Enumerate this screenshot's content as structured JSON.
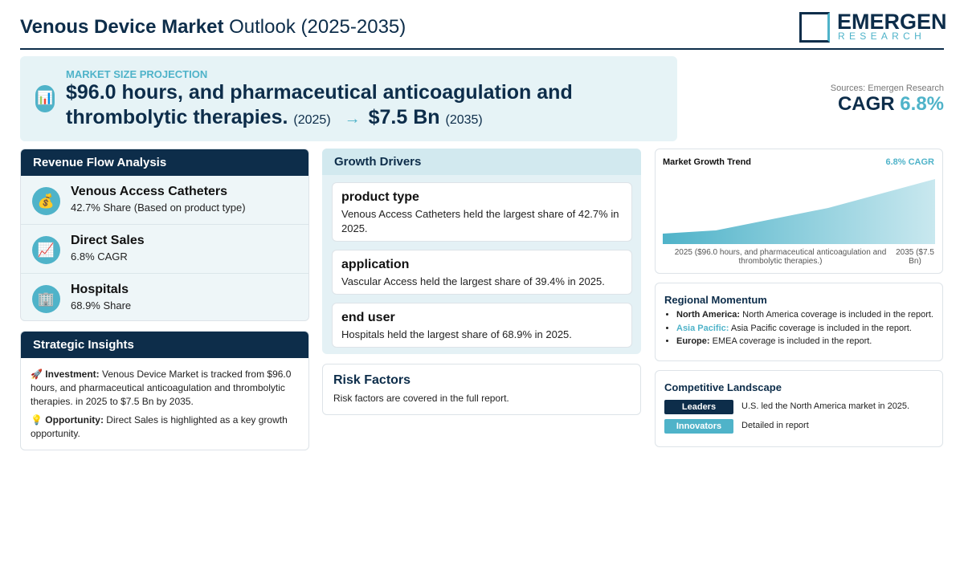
{
  "header": {
    "title_bold": "Venous Device Market",
    "title_rest": "Outlook (2025-2035)",
    "logo": {
      "name": "EMERGEN",
      "sub": "RESEARCH"
    }
  },
  "projection": {
    "label": "MARKET SIZE PROJECTION",
    "icon": "📊",
    "start_value": "$96.0 hours, and pharmaceutical anticoagulation and thrombolytic therapies.",
    "start_year": "(2025)",
    "arrow": "→",
    "end_value": "$7.5 Bn",
    "end_year": "(2035)"
  },
  "sources": "Sources: Emergen Research",
  "cagr": {
    "label": "CAGR",
    "value": "6.8%"
  },
  "revenue_flow": {
    "title": "Revenue Flow Analysis",
    "items": [
      {
        "icon": "💰",
        "name": "Venous Access Catheters",
        "detail": "42.7% Share (Based on product type)"
      },
      {
        "icon": "📈",
        "name": "Direct Sales",
        "detail": "6.8% CAGR"
      },
      {
        "icon": "🏢",
        "name": "Hospitals",
        "detail": "68.9% Share"
      }
    ]
  },
  "strategic_insights": {
    "title": "Strategic Insights",
    "items": [
      {
        "icon": "🚀",
        "label": "Investment:",
        "text": "Venous Device Market is tracked from $96.0 hours, and pharmaceutical anticoagulation and thrombolytic therapies. in 2025 to $7.5 Bn by 2035."
      },
      {
        "icon": "💡",
        "label": "Opportunity:",
        "text": "Direct Sales is highlighted as a key growth opportunity."
      }
    ]
  },
  "growth_drivers": {
    "title": "Growth Drivers",
    "items": [
      {
        "title": "product type",
        "text": "Venous Access Catheters held the largest share of 42.7% in 2025."
      },
      {
        "title": "application",
        "text": "Vascular Access held the largest share of 39.4% in 2025."
      },
      {
        "title": "end user",
        "text": "Hospitals held the largest share of 68.9% in 2025."
      }
    ]
  },
  "risk_factors": {
    "title": "Risk Factors",
    "text": "Risk factors are covered in the full report."
  },
  "market_growth_trend": {
    "title": "Market Growth Trend",
    "badge": "6.8% CAGR",
    "start_label": "2025 ($96.0 hours, and pharmaceutical anticoagulation and thrombolytic therapies.)",
    "end_label": "2035 ($7.5 Bn)"
  },
  "regional_momentum": {
    "title": "Regional Momentum",
    "items": [
      {
        "region": "North America:",
        "text": "North America coverage is included in the report."
      },
      {
        "region": "Asia Pacific:",
        "text": "Asia Pacific coverage is included in the report."
      },
      {
        "region": "Europe:",
        "text": "EMEA coverage is included in the report."
      }
    ]
  },
  "competitive_landscape": {
    "title": "Competitive Landscape",
    "items": [
      {
        "tag": "Leaders",
        "text": "U.S. led the North America market in 2025."
      },
      {
        "tag": "Innovators",
        "text": "Detailed in report"
      }
    ]
  }
}
